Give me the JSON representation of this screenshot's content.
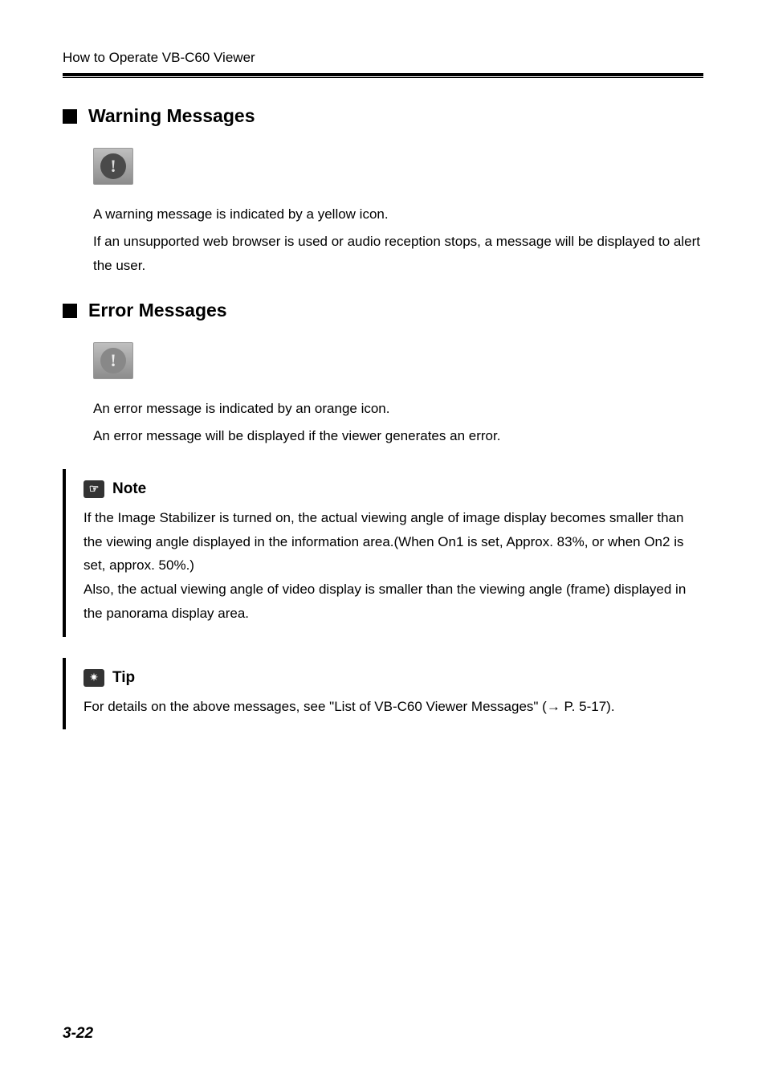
{
  "header": {
    "running_title": "How to Operate VB-C60 Viewer"
  },
  "sections": {
    "warning": {
      "title": "Warning Messages",
      "p1": "A warning message is indicated by a yellow icon.",
      "p2": "If an unsupported web browser is used or audio reception stops, a message will be displayed to alert the user."
    },
    "error": {
      "title": "Error Messages",
      "p1": "An error message is indicated by an orange icon.",
      "p2": "An error message will be displayed if the viewer generates an error."
    }
  },
  "note": {
    "label": "Note",
    "body": "If the Image Stabilizer is turned on, the actual viewing angle of image display becomes smaller than the viewing angle displayed in the information area.(When On1 is set, Approx. 83%, or when On2 is set, approx. 50%.)\nAlso, the actual viewing angle of video display is smaller than the viewing angle (frame) displayed in the panorama display area."
  },
  "tip": {
    "label": "Tip",
    "body": "For details on the above messages, see \"List of VB-C60 Viewer Messages\" (→ P. 5-17)."
  },
  "footer": {
    "page_number": "3-22"
  }
}
